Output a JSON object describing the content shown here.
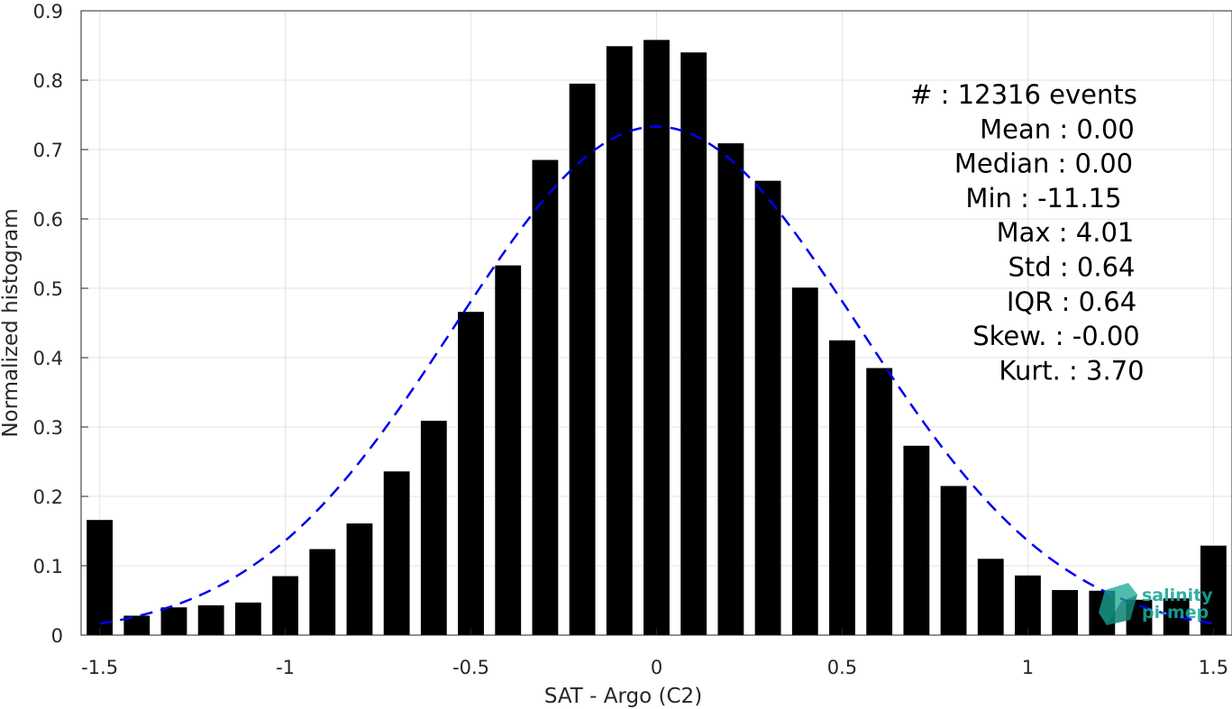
{
  "chart_data": {
    "type": "bar",
    "xlabel": "SAT - Argo (C2)",
    "ylabel": "Normalized histogram",
    "xlim": [
      -1.55,
      1.55
    ],
    "ylim": [
      0,
      0.9
    ],
    "xticks": [
      -1.5,
      -1,
      -0.5,
      0,
      0.5,
      1,
      1.5
    ],
    "xtick_labels": [
      "-1.5",
      "-1",
      "-0.5",
      "0",
      "0.5",
      "1",
      "1.5"
    ],
    "yticks": [
      0,
      0.1,
      0.2,
      0.3,
      0.4,
      0.5,
      0.6,
      0.7,
      0.8,
      0.9
    ],
    "ytick_labels": [
      "0",
      "0.1",
      "0.2",
      "0.3",
      "0.4",
      "0.5",
      "0.6",
      "0.7",
      "0.8",
      "0.9"
    ],
    "grid": true,
    "bar_color": "#000000",
    "x": [
      -1.5,
      -1.4,
      -1.3,
      -1.2,
      -1.1,
      -1.0,
      -0.9,
      -0.8,
      -0.7,
      -0.6,
      -0.5,
      -0.4,
      -0.3,
      -0.2,
      -0.1,
      0.0,
      0.1,
      0.2,
      0.3,
      0.4,
      0.5,
      0.6,
      0.7,
      0.8,
      0.9,
      1.0,
      1.1,
      1.2,
      1.3,
      1.4,
      1.5
    ],
    "values": [
      0.166,
      0.028,
      0.04,
      0.043,
      0.047,
      0.085,
      0.124,
      0.161,
      0.236,
      0.309,
      0.466,
      0.533,
      0.685,
      0.795,
      0.849,
      0.858,
      0.84,
      0.709,
      0.655,
      0.501,
      0.425,
      0.385,
      0.273,
      0.215,
      0.11,
      0.086,
      0.065,
      0.064,
      0.051,
      0.053,
      0.129
    ],
    "fit_curve": {
      "type": "gaussian",
      "mean": 0.0,
      "std": 0.545,
      "peak": 0.733,
      "x_range": [
        -1.5,
        1.5
      ],
      "color": "#0000ee",
      "style": "dashed"
    },
    "stats": [
      "#  : 12316 events",
      "Mean : 0.00",
      "Median : 0.00",
      "Min : -11.15",
      "Max : 4.01",
      "Std : 0.64",
      "IQR : 0.64",
      "Skew. : -0.00",
      "Kurt. : 3.70"
    ],
    "logo": {
      "line1": "salinity",
      "line2": "pi-mep",
      "color": "#19a89a"
    }
  }
}
